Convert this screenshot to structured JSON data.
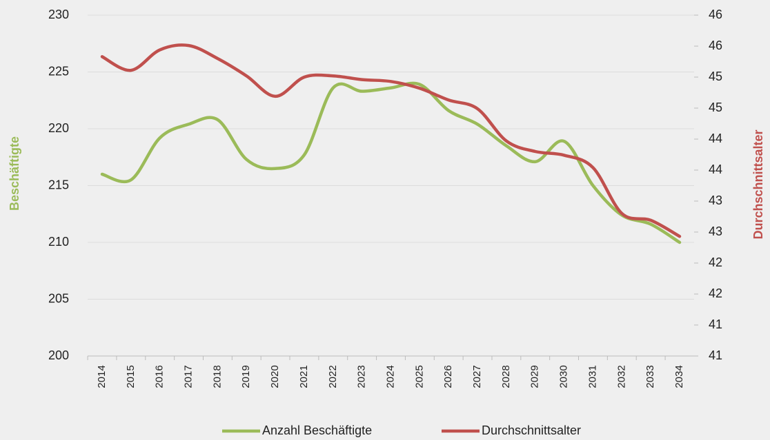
{
  "chart_data": {
    "type": "line",
    "y_label": "Beschäftigte",
    "y2_label": "Durchschnittsalter",
    "categories": [
      "2014",
      "2015",
      "2016",
      "2017",
      "2018",
      "2019",
      "2020",
      "2021",
      "2022",
      "2023",
      "2024",
      "2025",
      "2026",
      "2027",
      "2028",
      "2029",
      "2030",
      "2031",
      "2032",
      "2033",
      "2034"
    ],
    "series": [
      {
        "name": "Anzahl Beschäftigte",
        "color": "#9bbb59",
        "axis": "y",
        "values": [
          216,
          215.5,
          219.2,
          220.4,
          220.8,
          217.3,
          216.5,
          217.7,
          223.6,
          223.3,
          223.6,
          223.9,
          221.6,
          220.4,
          218.5,
          217.1,
          218.9,
          215,
          212.4,
          211.6,
          210
        ]
      },
      {
        "name": "Durchschnittsalter",
        "color": "#c0504d",
        "axis": "y2",
        "values": [
          45.63,
          45.41,
          45.74,
          45.81,
          45.6,
          45.32,
          44.99,
          45.3,
          45.32,
          45.26,
          45.23,
          45.12,
          44.93,
          44.79,
          44.27,
          44.1,
          44.04,
          43.84,
          43.1,
          42.99,
          42.73
        ]
      }
    ],
    "ylim": [
      200,
      230
    ],
    "yticks": [
      200,
      205,
      210,
      215,
      220,
      225,
      230
    ],
    "y2lim": [
      40.8,
      46.3
    ],
    "y2ticks": [
      {
        "value": 40.8,
        "label": "41"
      },
      {
        "value": 41.3,
        "label": "41"
      },
      {
        "value": 41.8,
        "label": "42"
      },
      {
        "value": 42.3,
        "label": "42"
      },
      {
        "value": 42.8,
        "label": "43"
      },
      {
        "value": 43.3,
        "label": "43"
      },
      {
        "value": 43.8,
        "label": "44"
      },
      {
        "value": 44.3,
        "label": "44"
      },
      {
        "value": 44.8,
        "label": "45"
      },
      {
        "value": 45.3,
        "label": "45"
      },
      {
        "value": 45.8,
        "label": "46"
      },
      {
        "value": 46.3,
        "label": "46"
      }
    ],
    "grid": true,
    "legend": "bottom"
  }
}
